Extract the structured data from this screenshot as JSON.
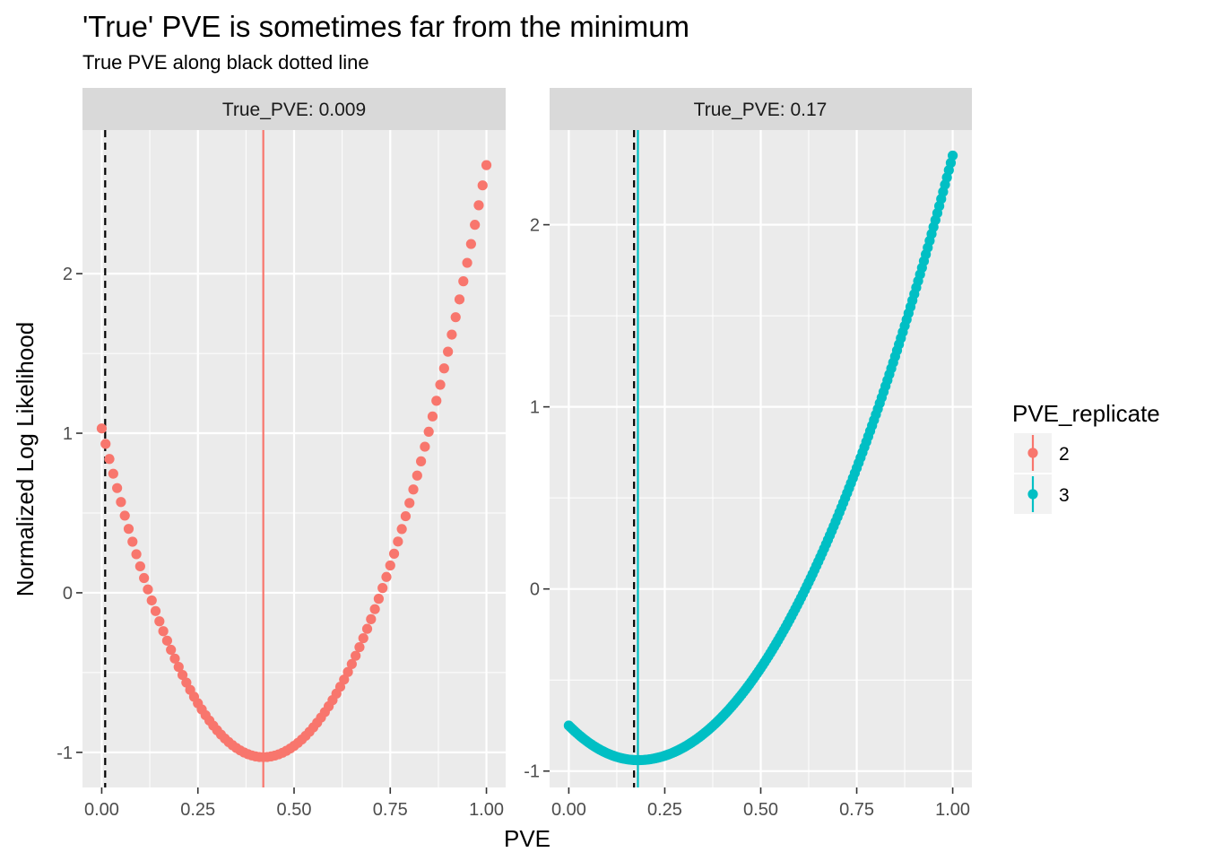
{
  "chart_data": {
    "type": "scatter",
    "title": "'True' PVE is sometimes far from the minimum",
    "subtitle": "True PVE along black dotted line",
    "xlabel": "PVE",
    "ylabel": "Normalized Log Likelihood",
    "legend": {
      "title": "PVE_replicate",
      "placement": "right",
      "entries": [
        {
          "label": "2",
          "color": "#F8766D"
        },
        {
          "label": "3",
          "color": "#00BFC4"
        }
      ]
    },
    "x_tick_labels": [
      "0.00",
      "0.25",
      "0.50",
      "0.75",
      "1.00"
    ],
    "x_ticks": [
      0,
      0.25,
      0.5,
      0.75,
      1
    ],
    "xlim": [
      -0.05,
      1.05
    ],
    "grid": true,
    "panels": [
      {
        "strip_label": "True_PVE: 0.009",
        "true_pve": 0.009,
        "estimated_pve": 0.42,
        "color": "#F8766D",
        "series_name": "2",
        "y_tick_labels": [
          "-1",
          "0",
          "1",
          "2"
        ],
        "y_ticks": [
          -1,
          0,
          1,
          2
        ],
        "ylim": [
          -1.22,
          2.9
        ],
        "x_start": 0,
        "x_end": 1,
        "x_step": 0.01,
        "curve": {
          "min_x": 0.42,
          "min_y": -1.03,
          "left_y": 1.03,
          "right_y": 2.68
        }
      },
      {
        "strip_label": "True_PVE: 0.17",
        "true_pve": 0.17,
        "estimated_pve": 0.18,
        "color": "#00BFC4",
        "series_name": "3",
        "y_tick_labels": [
          "-1",
          "0",
          "1",
          "2"
        ],
        "y_ticks": [
          -1,
          0,
          1,
          2
        ],
        "ylim": [
          -1.09,
          2.52
        ],
        "x_start": 0,
        "x_end": 1,
        "x_step": 0.005,
        "curve": {
          "min_x": 0.18,
          "min_y": -0.94,
          "left_y": -0.75,
          "right_y": 2.38
        }
      }
    ]
  }
}
